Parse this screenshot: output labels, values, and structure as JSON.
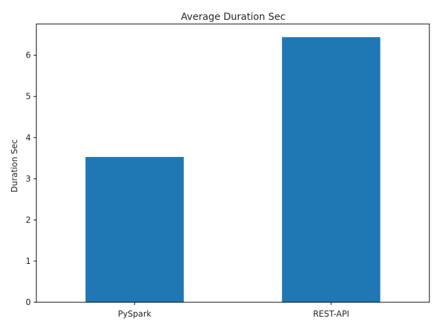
{
  "chart_data": {
    "type": "bar",
    "title": "Average Duration Sec",
    "xlabel": "",
    "ylabel": "Duration Sec",
    "categories": [
      "PySpark",
      "REST-API"
    ],
    "values": [
      3.53,
      6.44
    ],
    "ylim": [
      0,
      6.76
    ],
    "yticks": [
      0,
      1,
      2,
      3,
      4,
      5,
      6
    ],
    "grid": false,
    "legend": "none",
    "bar_color": "#1f77b4"
  }
}
